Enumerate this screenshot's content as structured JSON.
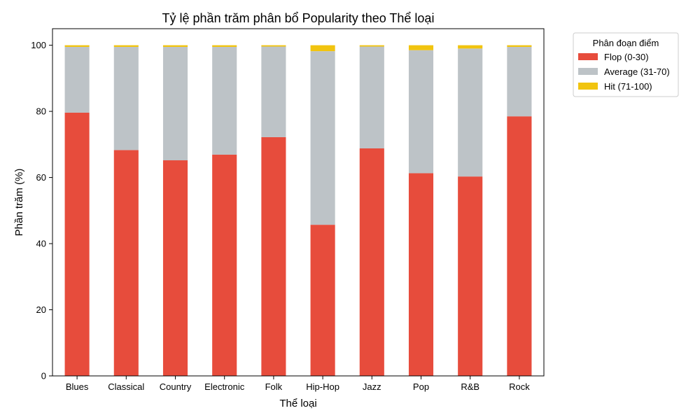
{
  "chart_data": {
    "type": "bar",
    "stacked": true,
    "title": "Tỷ lệ phần trăm phân bổ Popularity theo Thể loại",
    "xlabel": "Thể loại",
    "ylabel": "Phần trăm (%)",
    "ylim": [
      0,
      105
    ],
    "yticks": [
      0,
      20,
      40,
      60,
      80,
      100
    ],
    "grid": false,
    "legend_title": "Phân đoạn điểm",
    "legend_position": "outside-top-right",
    "categories": [
      "Blues",
      "Classical",
      "Country",
      "Electronic",
      "Folk",
      "Hip-Hop",
      "Jazz",
      "Pop",
      "R&B",
      "Rock"
    ],
    "series": [
      {
        "name": "Flop (0-30)",
        "color": "#e74c3c",
        "values": [
          79.6,
          68.3,
          65.2,
          66.9,
          72.2,
          45.7,
          68.8,
          61.3,
          60.3,
          78.5
        ]
      },
      {
        "name": "Average (31-70)",
        "color": "#bdc3c7",
        "values": [
          19.9,
          31.2,
          34.3,
          32.6,
          27.4,
          52.5,
          30.8,
          37.2,
          38.7,
          21.0
        ]
      },
      {
        "name": "Hit (71-100)",
        "color": "#f1c40f",
        "values": [
          0.5,
          0.5,
          0.5,
          0.5,
          0.4,
          1.8,
          0.4,
          1.5,
          1.0,
          0.5
        ]
      }
    ]
  }
}
